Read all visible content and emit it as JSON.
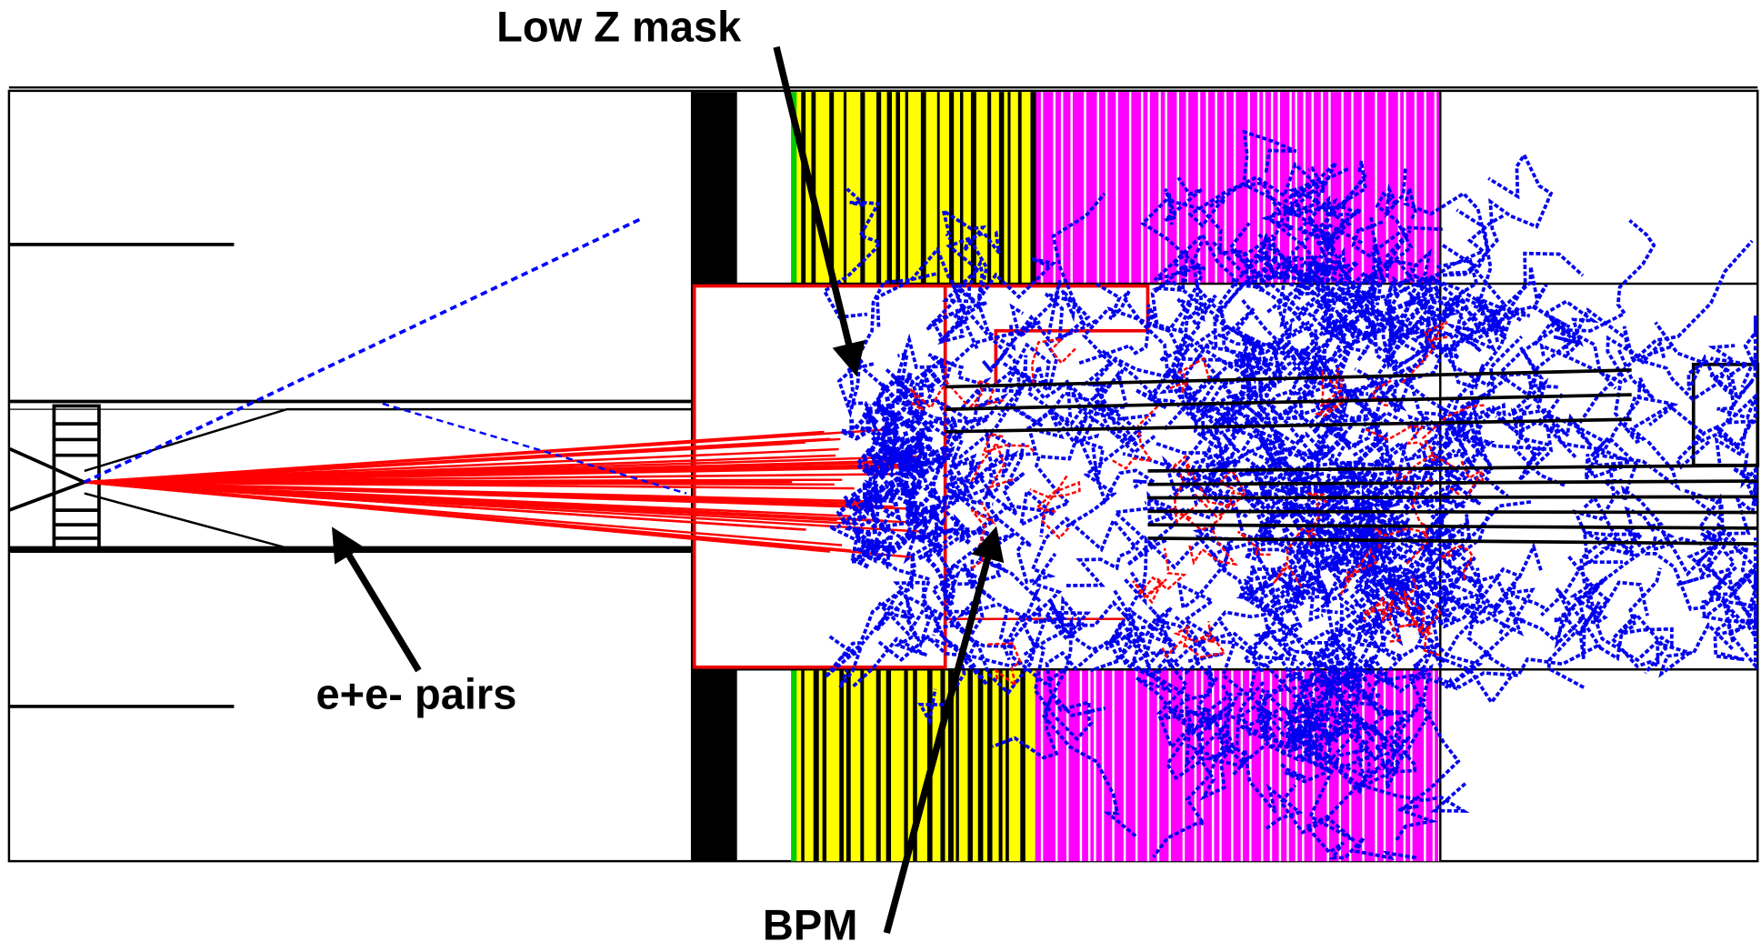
{
  "annotations": [
    {
      "label": "Low Z mask"
    },
    {
      "label": "e+e- pairs"
    },
    {
      "label": "BPM"
    }
  ]
}
